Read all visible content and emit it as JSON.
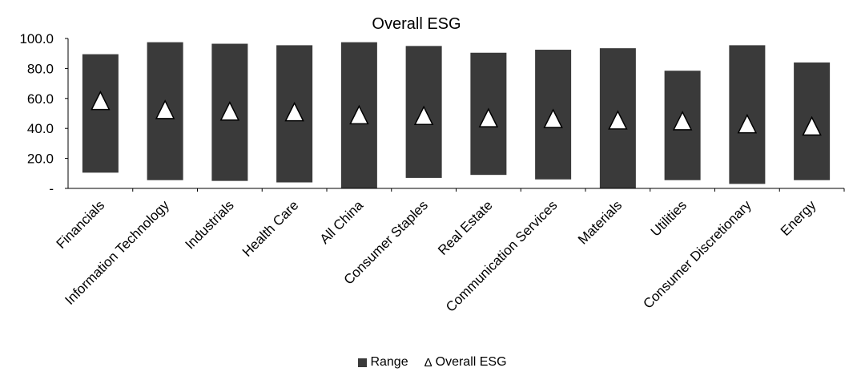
{
  "chart_data": {
    "type": "bar",
    "title": "Overall ESG",
    "categories": [
      "Financials",
      "Information Technology",
      "Industrials",
      "Health Care",
      "All China",
      "Consumer Staples",
      "Real Estate",
      "Communication Services",
      "Materials",
      "Utilities",
      "Consumer Discretionary",
      "Energy"
    ],
    "series": [
      {
        "name": "Range",
        "kind": "floating-range",
        "low": [
          10.5,
          5.5,
          5.0,
          4.0,
          0.0,
          7.0,
          9.0,
          6.0,
          0.0,
          5.5,
          3.0,
          5.5
        ],
        "high": [
          89.5,
          97.5,
          96.5,
          95.5,
          97.5,
          95.0,
          90.5,
          92.5,
          93.5,
          78.5,
          95.5,
          84.0
        ]
      },
      {
        "name": "Overall ESG",
        "kind": "marker-triangle",
        "values": [
          58.5,
          52.5,
          51.5,
          51.0,
          49.0,
          48.5,
          47.0,
          46.5,
          45.5,
          45.0,
          43.0,
          41.5
        ]
      }
    ],
    "ylim": [
      0,
      100
    ],
    "yticks": [
      0,
      20,
      40,
      60,
      80,
      100
    ],
    "ytick_labels": [
      "-",
      "20.0",
      "40.0",
      "60.0",
      "80.0",
      "100.0"
    ],
    "xlabel": "",
    "ylabel": "",
    "grid": false,
    "legend_position": "bottom-center",
    "colors": {
      "bar": "#3a3a3a",
      "marker_fill": "#ffffff",
      "marker_stroke": "#000000",
      "axis": "#000000"
    }
  },
  "legend": {
    "range_label": "Range",
    "triangle_glyph": "Δ",
    "esg_label": "Overall ESG"
  }
}
